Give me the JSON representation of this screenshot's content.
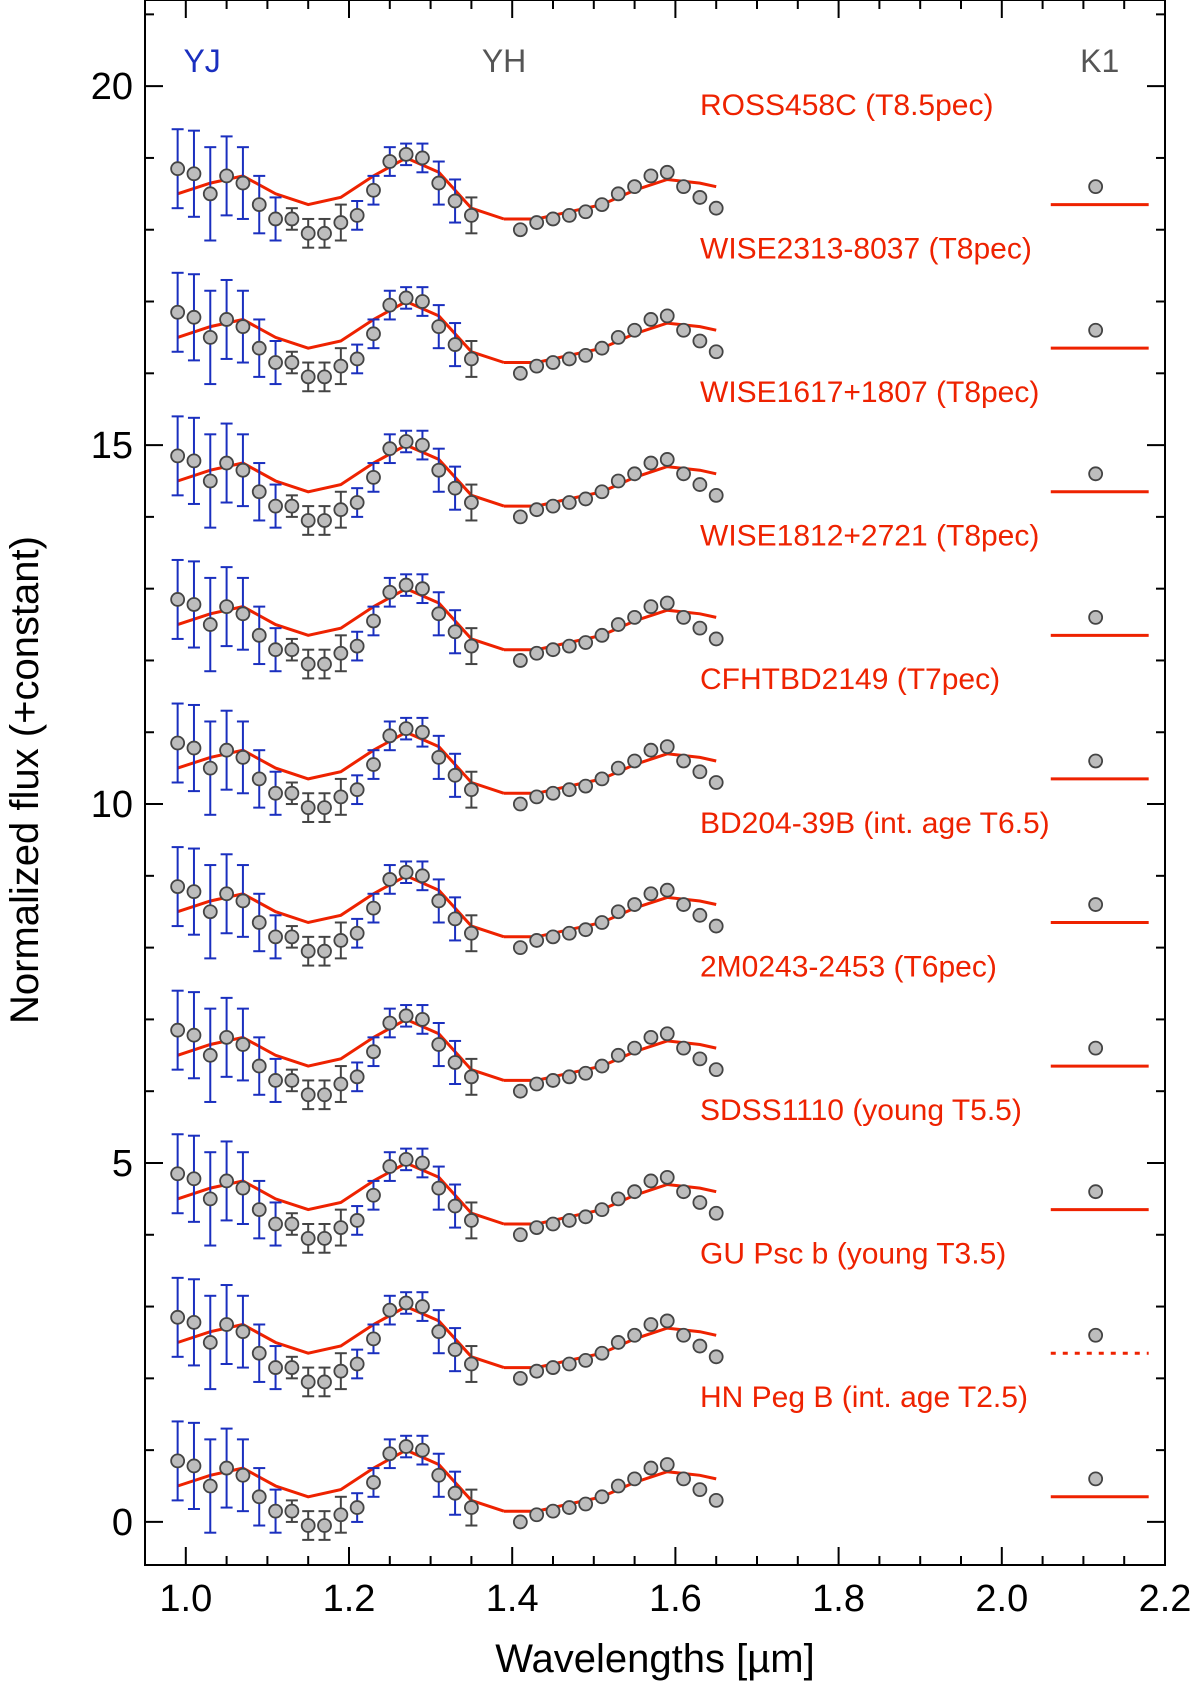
{
  "chart_data": {
    "type": "scatter",
    "title": "",
    "xlabel": "Wavelengths [µm]",
    "ylabel": "Normalized flux (+constant)",
    "xlim": [
      0.95,
      2.2
    ],
    "ylim": [
      -0.6,
      21.2
    ],
    "x_ticks": [
      1.0,
      1.2,
      1.4,
      1.6,
      1.8,
      2.0,
      2.2
    ],
    "x_tick_labels": [
      "1.0",
      "1.2",
      "1.4",
      "1.6",
      "1.8",
      "2.0",
      "2.2"
    ],
    "y_ticks": [
      0,
      5,
      10,
      15,
      20
    ],
    "y_tick_labels": [
      "0",
      "5",
      "10",
      "15",
      "20"
    ],
    "grid": false,
    "bands": [
      {
        "label": "YJ",
        "x": 1.02,
        "color": "#1a2fbf"
      },
      {
        "label": "YH",
        "x": 1.39,
        "color": "#555555"
      },
      {
        "label": "K1",
        "x": 2.12,
        "color": "#555555"
      }
    ],
    "colors": {
      "data": "#bdbdbd",
      "data_edge": "#444444",
      "yj_err": "#1a2fbf",
      "yh_err": "#444444",
      "model": "#ee2200",
      "label": "#ee2200"
    },
    "template": {
      "yj_x": [
        0.99,
        1.01,
        1.03,
        1.05,
        1.07,
        1.09,
        1.11,
        1.13,
        1.15,
        1.17,
        1.19,
        1.21,
        1.23,
        1.25,
        1.27,
        1.29,
        1.31,
        1.33,
        1.35
      ],
      "yj_y": [
        0.85,
        0.78,
        0.5,
        0.75,
        0.65,
        0.35,
        0.15,
        0.15,
        -0.05,
        -0.05,
        0.1,
        0.2,
        0.55,
        0.95,
        1.05,
        1.0,
        0.65,
        0.4,
        0.2
      ],
      "yj_err": [
        0.55,
        0.6,
        0.65,
        0.55,
        0.5,
        0.4,
        0.3,
        0.15,
        0.2,
        0.2,
        0.25,
        0.2,
        0.2,
        0.2,
        0.15,
        0.2,
        0.3,
        0.3,
        0.25
      ],
      "yj_blue": [
        true,
        true,
        true,
        true,
        true,
        true,
        true,
        false,
        false,
        false,
        false,
        true,
        true,
        true,
        true,
        true,
        true,
        true,
        false
      ],
      "yh_x": [
        1.41,
        1.43,
        1.45,
        1.47,
        1.49,
        1.51,
        1.53,
        1.55,
        1.57,
        1.59,
        1.61,
        1.63,
        1.65
      ],
      "yh_y": [
        0.0,
        0.1,
        0.15,
        0.2,
        0.25,
        0.35,
        0.5,
        0.6,
        0.75,
        0.8,
        0.6,
        0.45,
        0.3
      ],
      "k1_x": 2.115,
      "k1_y": 0.6,
      "model_yj_x": [
        0.99,
        1.03,
        1.07,
        1.11,
        1.15,
        1.19,
        1.23,
        1.27,
        1.31,
        1.35,
        1.39
      ],
      "model_yj_y": [
        0.5,
        0.65,
        0.75,
        0.5,
        0.35,
        0.45,
        0.75,
        1.0,
        0.8,
        0.3,
        0.15
      ],
      "model_yh_x": [
        1.39,
        1.43,
        1.47,
        1.51,
        1.55,
        1.59,
        1.63,
        1.65
      ],
      "model_yh_y": [
        0.15,
        0.15,
        0.25,
        0.35,
        0.55,
        0.7,
        0.65,
        0.6
      ],
      "model_k1_x": [
        2.06,
        2.18
      ],
      "model_k1_y": 0.35
    },
    "series": [
      {
        "name": "ROSS458C (T8.5pec)",
        "offset": 18.0
      },
      {
        "name": "WISE2313-8037 (T8pec)",
        "offset": 16.0
      },
      {
        "name": "WISE1617+1807 (T8pec)",
        "offset": 14.0
      },
      {
        "name": "WISE1812+2721 (T8pec)",
        "offset": 12.0
      },
      {
        "name": "CFHTBD2149 (T7pec)",
        "offset": 10.0
      },
      {
        "name": "BD204-39B (int. age T6.5)",
        "offset": 8.0
      },
      {
        "name": "2M0243-2453 (T6pec)",
        "offset": 6.0
      },
      {
        "name": "SDSS1110 (young T5.5)",
        "offset": 4.0
      },
      {
        "name": "GU Psc b (young T3.5)",
        "offset": 2.0,
        "k1_dotted": true
      },
      {
        "name": "HN Peg B (int. age T2.5)",
        "offset": 0.0
      }
    ]
  }
}
